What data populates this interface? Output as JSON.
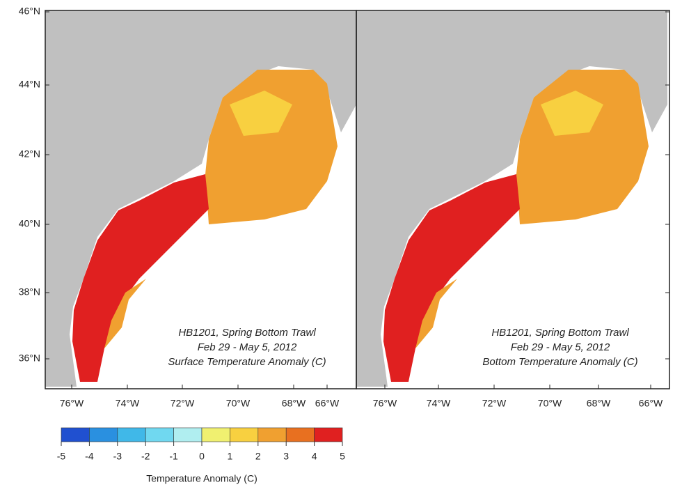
{
  "latitude_labels": [
    "46°N",
    "44°N",
    "42°N",
    "40°N",
    "38°N",
    "36°N"
  ],
  "panel_left": {
    "caption": [
      "HB1201, Spring Bottom Trawl",
      "Feb 29 - May 5, 2012",
      "Surface Temperature Anomaly (C)"
    ],
    "longitude_labels": [
      "76°W",
      "74°W",
      "72°W",
      "70°W",
      "68°W",
      "66°W"
    ]
  },
  "panel_right": {
    "caption": [
      "HB1201, Spring Bottom Trawl",
      "Feb 29 - May 5, 2012",
      "Bottom Temperature Anomaly (C)"
    ],
    "longitude_labels": [
      "76°W",
      "74°W",
      "72°W",
      "70°W",
      "68°W",
      "66°W"
    ]
  },
  "colorbar": {
    "ticks": [
      -5,
      -4,
      -3,
      -2,
      -1,
      0,
      1,
      2,
      3,
      4,
      5
    ],
    "colors": [
      "#2050d0",
      "#2a90e0",
      "#40b8e8",
      "#70d8f0",
      "#b0eef0",
      "#f0f070",
      "#f8d040",
      "#f0a030",
      "#e87020",
      "#e02020"
    ],
    "label": "Temperature Anomaly (C)"
  }
}
